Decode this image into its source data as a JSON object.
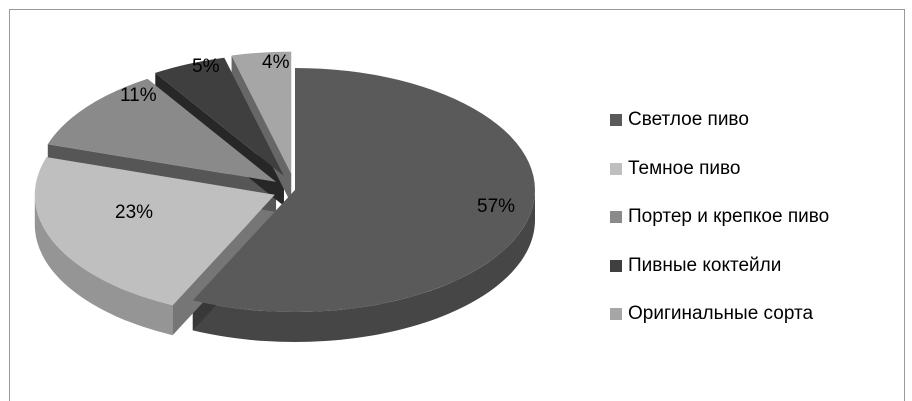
{
  "chart_data": {
    "type": "pie",
    "style": "3d-exploded",
    "categories": [
      "Светлое пиво",
      "Темное пиво",
      "Портер и крепкое пиво",
      "Пивные коктейли",
      "Оригинальные сорта"
    ],
    "values": [
      57,
      23,
      11,
      5,
      4
    ],
    "data_labels": [
      "57%",
      "23%",
      "11%",
      "5%",
      "4%"
    ],
    "colors": [
      "#5a5a5a",
      "#bfbfbf",
      "#8a8a8a",
      "#3f3f3f",
      "#a6a6a6"
    ],
    "legend": {
      "position": "right",
      "items": [
        {
          "label": "Светлое пиво",
          "color": "#5a5a5a"
        },
        {
          "label": "Темное пиво",
          "color": "#bfbfbf"
        },
        {
          "label": "Портер и крепкое пиво",
          "color": "#8a8a8a"
        },
        {
          "label": "Пивные коктейли",
          "color": "#3f3f3f"
        },
        {
          "label": "Оригинальные сорта",
          "color": "#a6a6a6"
        }
      ]
    }
  }
}
